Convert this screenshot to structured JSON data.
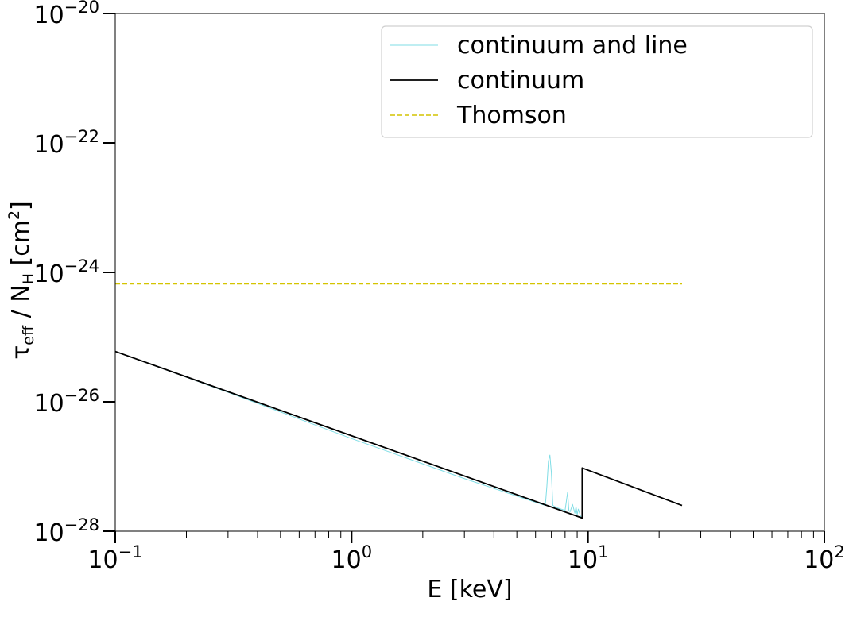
{
  "chart_data": {
    "type": "line",
    "title": "",
    "xlabel": "E [keV]",
    "ylabel": {
      "tau": "τ",
      "tau_sub": "eff",
      "sep": " / N",
      "n_sub": "H",
      "unit": " [cm",
      "unit_sup": "2",
      "unit_end": "]"
    },
    "xscale": "log",
    "yscale": "log",
    "xlim": [
      0.1,
      100
    ],
    "ylim": [
      1e-28,
      1e-20
    ],
    "x_ticks": [
      {
        "base": "10",
        "exp": "−1",
        "value": 0.1
      },
      {
        "base": "10",
        "exp": "0",
        "value": 1
      },
      {
        "base": "10",
        "exp": "1",
        "value": 10
      },
      {
        "base": "10",
        "exp": "2",
        "value": 100
      }
    ],
    "y_ticks": [
      {
        "base": "10",
        "exp": "−28",
        "value": 1e-28
      },
      {
        "base": "10",
        "exp": "−26",
        "value": 1e-26
      },
      {
        "base": "10",
        "exp": "−24",
        "value": 1e-24
      },
      {
        "base": "10",
        "exp": "−22",
        "value": 1e-22
      },
      {
        "base": "10",
        "exp": "−20",
        "value": 1e-20
      }
    ],
    "legend_position": "upper right",
    "series": [
      {
        "name": "continuum and line",
        "color": "#7fdde5",
        "style": "solid",
        "x": [
          0.1,
          0.3,
          1.0,
          3.0,
          6.0,
          6.6,
          6.7,
          6.8,
          6.9,
          7.0,
          7.1,
          7.4,
          8.0,
          8.2,
          8.3,
          8.4,
          8.6,
          8.8,
          8.9,
          9.0,
          9.1,
          9.3,
          9.5
        ],
        "y": [
          6e-26,
          1.4e-26,
          2.7e-27,
          6.5e-28,
          2.8e-28,
          2.5e-28,
          5e-28,
          1.2e-27,
          1.5e-27,
          8e-28,
          2.5e-28,
          2.3e-28,
          2.1e-28,
          4e-28,
          2.1e-28,
          2e-28,
          2.6e-28,
          1.9e-28,
          2.4e-28,
          1.8e-28,
          2.2e-28,
          1.7e-28,
          1.6e-28
        ]
      },
      {
        "name": "continuum",
        "color": "#000000",
        "style": "solid",
        "x": [
          0.1,
          9.45,
          9.45,
          25
        ],
        "y": [
          6e-26,
          1.6e-28,
          9.5e-28,
          2.5e-28
        ]
      },
      {
        "name": "Thomson",
        "color": "#d4c400",
        "style": "dashed",
        "x": [
          0.1,
          25
        ],
        "y": [
          6.65e-25,
          6.65e-25
        ]
      }
    ]
  }
}
